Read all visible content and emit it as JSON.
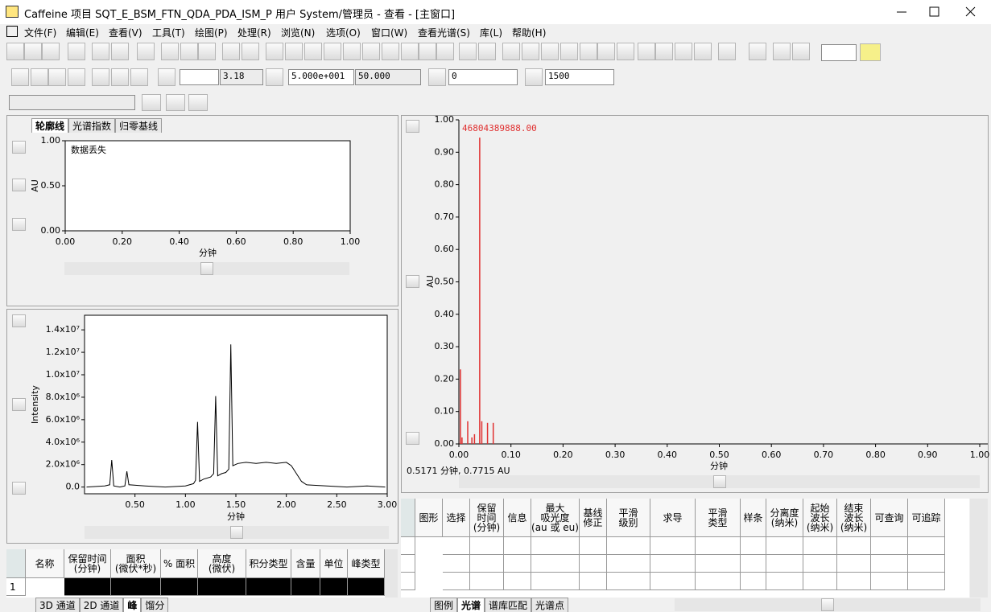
{
  "window": {
    "title": "Caffeine 项目 SQT_E_BSM_FTN_QDA_PDA_ISM_P 用户 System/管理员 - 查看 - [主窗口]"
  },
  "menu": [
    "文件(F)",
    "编辑(E)",
    "查看(V)",
    "工具(T)",
    "绘图(P)",
    "处理(R)",
    "浏览(N)",
    "选项(O)",
    "窗口(W)",
    "查看光谱(S)",
    "库(L)",
    "帮助(H)"
  ],
  "toolbar": {
    "fields": [
      "3.18",
      "5.000e+001",
      "50.000",
      "0",
      "1500"
    ]
  },
  "left_tabs": [
    "轮廓线",
    "光谱指数",
    "归零基线"
  ],
  "chart_data": [
    {
      "type": "line",
      "xlabel": "分钟",
      "ylabel": "AU",
      "annotation": "数据丢失",
      "xlim": [
        0,
        1
      ],
      "ylim": [
        0,
        1
      ],
      "xticks": [
        {
          "value": 0,
          "label": "0.00"
        },
        {
          "value": 0.2,
          "label": "0.20"
        },
        {
          "value": 0.4,
          "label": "0.40"
        },
        {
          "value": 0.6,
          "label": "0.60"
        },
        {
          "value": 0.8,
          "label": "0.80"
        },
        {
          "value": 1,
          "label": "1.00"
        }
      ],
      "yticks": [
        {
          "value": 0,
          "label": "0.00"
        },
        {
          "value": 0.5,
          "label": "0.50"
        },
        {
          "value": 1,
          "label": "1.00"
        }
      ]
    },
    {
      "type": "line",
      "xlabel": "分钟",
      "ylabel": "Intensity",
      "color": "#000000",
      "xlim": [
        0,
        3
      ],
      "ylim": [
        -600000,
        15300000
      ],
      "xticks": [
        {
          "value": 0.5,
          "label": "0.50"
        },
        {
          "value": 1,
          "label": "1.00"
        },
        {
          "value": 1.5,
          "label": "1.50"
        },
        {
          "value": 2,
          "label": "2.00"
        },
        {
          "value": 2.5,
          "label": "2.50"
        },
        {
          "value": 3,
          "label": "3.00"
        }
      ],
      "yticks": [
        {
          "value": 0,
          "label": "0.0"
        },
        {
          "value": 2000000,
          "label": "2.0x10⁶"
        },
        {
          "value": 4000000,
          "label": "4.0x10⁶"
        },
        {
          "value": 6000000,
          "label": "6.0x10⁶"
        },
        {
          "value": 8000000,
          "label": "8.0x10⁶"
        },
        {
          "value": 10000000,
          "label": "1.0x10⁷"
        },
        {
          "value": 12000000,
          "label": "1.2x10⁷"
        },
        {
          "value": 14000000,
          "label": "1.4x10⁷"
        }
      ],
      "x": [
        0.02,
        0.2,
        0.25,
        0.27,
        0.29,
        0.35,
        0.4,
        0.42,
        0.44,
        0.6,
        0.8,
        1.0,
        1.08,
        1.1,
        1.12,
        1.14,
        1.18,
        1.25,
        1.28,
        1.3,
        1.32,
        1.36,
        1.4,
        1.43,
        1.45,
        1.47,
        1.52,
        1.6,
        1.7,
        1.8,
        1.9,
        2.0,
        2.05,
        2.1,
        2.15,
        2.2,
        2.4,
        2.6,
        2.8,
        2.98
      ],
      "values": [
        0,
        100000,
        200000,
        2400000,
        100000,
        0,
        100000,
        1400000,
        200000,
        100000,
        0,
        100000,
        300000,
        600000,
        5800000,
        500000,
        700000,
        900000,
        1200000,
        8100000,
        1000000,
        1200000,
        1300000,
        1600000,
        12700000,
        1900000,
        2100000,
        2200000,
        2100000,
        2200000,
        2100000,
        2200000,
        1900000,
        1200000,
        500000,
        200000,
        100000,
        0,
        100000,
        0
      ]
    },
    {
      "type": "bar",
      "xlabel": "分钟",
      "ylabel": "AU",
      "annotation": "46804389888.00",
      "color": "#e03030",
      "xlim": [
        0,
        1
      ],
      "ylim": [
        0,
        1
      ],
      "xticks": [
        {
          "value": 0,
          "label": "0.00"
        },
        {
          "value": 0.1,
          "label": "0.10"
        },
        {
          "value": 0.2,
          "label": "0.20"
        },
        {
          "value": 0.3,
          "label": "0.30"
        },
        {
          "value": 0.4,
          "label": "0.40"
        },
        {
          "value": 0.5,
          "label": "0.50"
        },
        {
          "value": 0.6,
          "label": "0.60"
        },
        {
          "value": 0.7,
          "label": "0.70"
        },
        {
          "value": 0.8,
          "label": "0.80"
        },
        {
          "value": 0.9,
          "label": "0.90"
        },
        {
          "value": 1,
          "label": "1.00"
        }
      ],
      "yticks": [
        {
          "value": 0,
          "label": "0.00"
        },
        {
          "value": 0.1,
          "label": "0.10"
        },
        {
          "value": 0.2,
          "label": "0.20"
        },
        {
          "value": 0.3,
          "label": "0.30"
        },
        {
          "value": 0.4,
          "label": "0.40"
        },
        {
          "value": 0.5,
          "label": "0.50"
        },
        {
          "value": 0.6,
          "label": "0.60"
        },
        {
          "value": 0.7,
          "label": "0.70"
        },
        {
          "value": 0.8,
          "label": "0.80"
        },
        {
          "value": 0.9,
          "label": "0.90"
        },
        {
          "value": 1,
          "label": "1.00"
        }
      ],
      "x": [
        0.003,
        0.006,
        0.017,
        0.025,
        0.03,
        0.04,
        0.044,
        0.055,
        0.066
      ],
      "values": [
        0.23,
        0.02,
        0.07,
        0.02,
        0.03,
        0.945,
        0.07,
        0.065,
        0.065
      ]
    }
  ],
  "status": "0.5171 分钟, 0.7715 AU",
  "peak_table": {
    "headers": [
      "名称",
      "保留时间\n(分钟)",
      "面积\n(微伏*秒)",
      "% 面积",
      "高度\n(微伏)",
      "积分类型",
      "含量",
      "单位",
      "峰类型"
    ],
    "rows": [
      [
        "1"
      ]
    ]
  },
  "spectrum_table": {
    "headers": [
      "图形",
      "选择",
      "保留\n时间\n(分钟)",
      "信息",
      "最大\n吸光度\n(au 或 eu)",
      "基线\n修正",
      "平滑\n级别",
      "求导",
      "平滑\n类型",
      "样条",
      "分离度\n(纳米)",
      "起始\n波长\n(纳米)",
      "结束\n波长\n(纳米)",
      "可查询",
      "可追踪"
    ]
  },
  "bottom_tabs_left": [
    "3D 通道",
    "2D 通道",
    "峰",
    "馏分"
  ],
  "bottom_tabs_right": [
    "图例",
    "光谱",
    "谱库匹配",
    "光谱点"
  ]
}
